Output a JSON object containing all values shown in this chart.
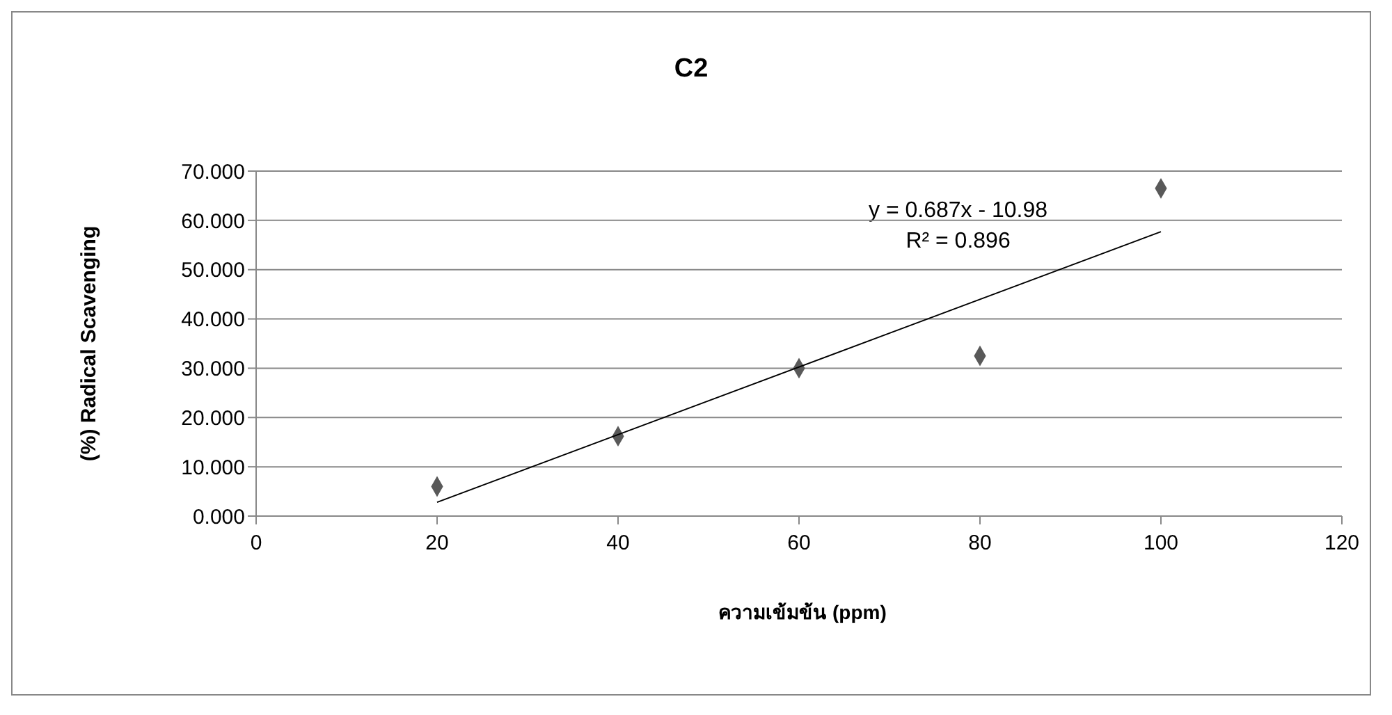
{
  "chart_data": {
    "type": "scatter",
    "title": "C2",
    "xlabel": "ความเข้มข้น (ppm)",
    "ylabel": "(%) Radical Scavenging",
    "series": [
      {
        "color": "#595959",
        "marker": "diamond",
        "x": [
          20,
          40,
          60,
          80,
          100
        ],
        "values": [
          6.0,
          16.2,
          30.0,
          32.5,
          66.5
        ]
      },
      {
        "type": "line",
        "color": "#000000",
        "marker": "none",
        "line_style": "solid",
        "x": [
          20,
          100
        ],
        "values": [
          2.8,
          57.7
        ]
      }
    ],
    "annotations": [
      "y = 0.687x - 10.98",
      "R² = 0.896"
    ],
    "xlim": [
      0,
      120
    ],
    "xticks": [
      0,
      20,
      40,
      60,
      80,
      100,
      120
    ],
    "ylim": [
      0,
      70
    ],
    "yticks": [
      {
        "value": 0,
        "label": "0.000"
      },
      {
        "value": 10,
        "label": "10.000"
      },
      {
        "value": 20,
        "label": "20.000"
      },
      {
        "value": 30,
        "label": "30.000"
      },
      {
        "value": 40,
        "label": "40.000"
      },
      {
        "value": 50,
        "label": "50.000"
      },
      {
        "value": 60,
        "label": "60.000"
      },
      {
        "value": 70,
        "label": "70.000"
      }
    ],
    "grid": "y"
  }
}
